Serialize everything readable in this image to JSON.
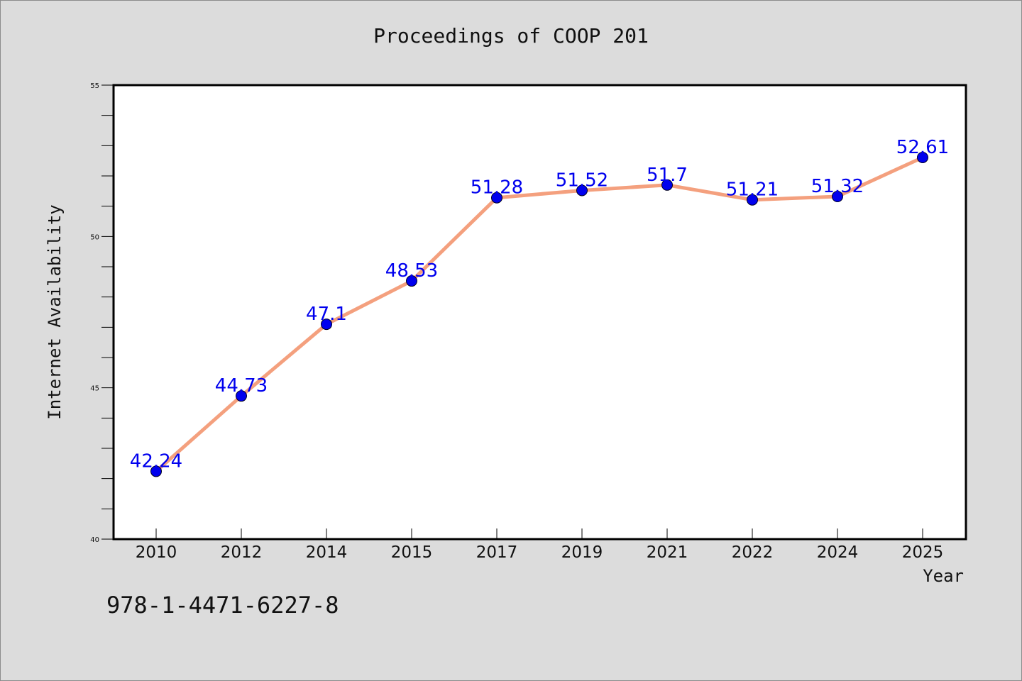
{
  "header": {
    "title": "Proceedings of COOP 201"
  },
  "footer": {
    "isbn": "978-1-4471-6227-8"
  },
  "colors": {
    "background": "#dcdcdc",
    "plot_bg": "#ffffff",
    "line": "#f4a07e",
    "marker": "#0000ee",
    "label": "#0000ee"
  },
  "chart_data": {
    "type": "line",
    "title": "Proceedings of COOP 201",
    "xlabel": "Year",
    "ylabel": "Internet Availability",
    "categories": [
      "2010",
      "2012",
      "2014",
      "2015",
      "2017",
      "2019",
      "2021",
      "2022",
      "2024",
      "2025"
    ],
    "series": [
      {
        "values": [
          42.24,
          44.73,
          47.1,
          48.53,
          51.28,
          51.52,
          51.7,
          51.21,
          51.32,
          52.61
        ]
      }
    ],
    "data_labels": [
      "42.24",
      "44.73",
      "47.1",
      "48.53",
      "51.28",
      "51.52",
      "51.7",
      "51.21",
      "51.32",
      "52.61"
    ],
    "ylim": [
      40,
      55
    ],
    "yticks": [
      40,
      45,
      50,
      55
    ],
    "y_minor_step": 1,
    "grid": false,
    "legend": "none"
  }
}
